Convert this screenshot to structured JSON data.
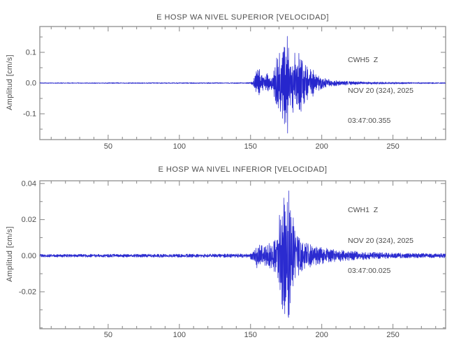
{
  "page": {
    "background": "#ffffff"
  },
  "chart_data": [
    {
      "type": "line",
      "subtype": "seismogram-velocity-trace",
      "title": "E HOSP WA NIVEL SUPERIOR [VELOCIDAD]",
      "ylabel": "Amplitud [cm/s]",
      "xlabel": "",
      "station": {
        "code": "CWH5",
        "component": "Z",
        "date": "NOV 20 (324), 2025",
        "time": "03:47:00.355"
      },
      "station_lines": [
        "CWH5  Z",
        "NOV 20 (324), 2025",
        "03:47:00.355"
      ],
      "xlim": [
        2,
        287
      ],
      "ylim": [
        -0.184,
        0.184
      ],
      "xticks": [
        50,
        100,
        150,
        200,
        250
      ],
      "xtick_labels": [
        "50",
        "100",
        "150",
        "200",
        "250"
      ],
      "xtick_minor_step": 10,
      "yticks": [
        -0.1,
        0.0,
        0.1
      ],
      "ytick_labels": [
        "-0.1",
        "0.0",
        "0.1"
      ],
      "ytick_minor_step": 0.05,
      "grid": false,
      "line_color": "#2626cd",
      "axis_color": "#8f8f8f",
      "text_color": "#4d4d4d",
      "noise_floor": 0.0015,
      "peak_amplitude": 0.172,
      "peak_x": 174,
      "event_onset_x": 152,
      "seed": 11,
      "envelope": [
        [
          2,
          0.0013
        ],
        [
          60,
          0.0015
        ],
        [
          120,
          0.0016
        ],
        [
          146,
          0.0018
        ],
        [
          150,
          0.0022
        ],
        [
          152,
          0.01
        ],
        [
          154,
          0.038
        ],
        [
          156,
          0.048
        ],
        [
          158,
          0.03
        ],
        [
          160,
          0.02
        ],
        [
          162,
          0.034
        ],
        [
          164,
          0.024
        ],
        [
          166,
          0.035
        ],
        [
          167,
          0.055
        ],
        [
          168,
          0.075
        ],
        [
          169,
          0.095
        ],
        [
          170,
          0.115
        ],
        [
          171,
          0.095
        ],
        [
          172,
          0.105
        ],
        [
          173,
          0.135
        ],
        [
          174,
          0.172
        ],
        [
          175,
          0.125
        ],
        [
          176,
          0.165
        ],
        [
          177,
          0.105
        ],
        [
          178,
          0.09
        ],
        [
          179,
          0.125
        ],
        [
          180,
          0.1
        ],
        [
          181,
          0.115
        ],
        [
          182,
          0.082
        ],
        [
          183,
          0.068
        ],
        [
          184,
          0.1
        ],
        [
          185,
          0.11
        ],
        [
          186,
          0.082
        ],
        [
          187,
          0.06
        ],
        [
          188,
          0.078
        ],
        [
          189,
          0.052
        ],
        [
          190,
          0.062
        ],
        [
          191,
          0.042
        ],
        [
          192,
          0.052
        ],
        [
          193,
          0.036
        ],
        [
          194,
          0.046
        ],
        [
          195,
          0.032
        ],
        [
          197,
          0.026
        ],
        [
          199,
          0.022
        ],
        [
          201,
          0.018
        ],
        [
          204,
          0.014
        ],
        [
          207,
          0.011
        ],
        [
          210,
          0.009
        ],
        [
          214,
          0.0075
        ],
        [
          218,
          0.0062
        ],
        [
          224,
          0.005
        ],
        [
          230,
          0.0042
        ],
        [
          238,
          0.0035
        ],
        [
          248,
          0.003
        ],
        [
          260,
          0.0025
        ],
        [
          272,
          0.0021
        ],
        [
          287,
          0.0018
        ]
      ]
    },
    {
      "type": "line",
      "subtype": "seismogram-velocity-trace",
      "title": "E HOSP WA NIVEL INFERIOR [VELOCIDAD]",
      "ylabel": "Amplitud [cm/s]",
      "xlabel": "",
      "station": {
        "code": "CWH1",
        "component": "Z",
        "date": "NOV 20 (324), 2025",
        "time": "03:47:00.025"
      },
      "station_lines": [
        "CWH1  Z",
        "NOV 20 (324), 2025",
        "03:47:00.025"
      ],
      "xlim": [
        2,
        287
      ],
      "ylim": [
        -0.0405,
        0.0415
      ],
      "xticks": [
        50,
        100,
        150,
        200,
        250
      ],
      "xtick_labels": [
        "50",
        "100",
        "150",
        "200",
        "250"
      ],
      "xtick_minor_step": 10,
      "yticks": [
        -0.02,
        0.0,
        0.02,
        0.04
      ],
      "ytick_labels": [
        "-0.02",
        "0.00",
        "0.02",
        "0.04"
      ],
      "ytick_minor_step": 0.01,
      "grid": false,
      "line_color": "#2b2bd0",
      "axis_color": "#8f8f8f",
      "text_color": "#4d4d4d",
      "noise_floor": 0.0008,
      "peak_amplitude": 0.0405,
      "peak_x": 172,
      "event_onset_x": 151,
      "seed": 23,
      "envelope": [
        [
          2,
          0.0008
        ],
        [
          80,
          0.0009
        ],
        [
          140,
          0.001
        ],
        [
          149,
          0.0011
        ],
        [
          151,
          0.003
        ],
        [
          153,
          0.0058
        ],
        [
          155,
          0.0072
        ],
        [
          157,
          0.006
        ],
        [
          159,
          0.0066
        ],
        [
          161,
          0.0055
        ],
        [
          163,
          0.0068
        ],
        [
          165,
          0.0075
        ],
        [
          167,
          0.0095
        ],
        [
          169,
          0.016
        ],
        [
          170,
          0.022
        ],
        [
          171,
          0.03
        ],
        [
          172,
          0.0405
        ],
        [
          173,
          0.033
        ],
        [
          174,
          0.036
        ],
        [
          175,
          0.027
        ],
        [
          176,
          0.031
        ],
        [
          177,
          0.0365
        ],
        [
          178,
          0.025
        ],
        [
          179,
          0.019
        ],
        [
          180,
          0.023
        ],
        [
          181,
          0.016
        ],
        [
          182,
          0.013
        ],
        [
          184,
          0.0105
        ],
        [
          186,
          0.0085
        ],
        [
          188,
          0.0078
        ],
        [
          190,
          0.007
        ],
        [
          193,
          0.006
        ],
        [
          196,
          0.0052
        ],
        [
          200,
          0.0046
        ],
        [
          205,
          0.004
        ],
        [
          210,
          0.0035
        ],
        [
          216,
          0.003
        ],
        [
          222,
          0.0026
        ],
        [
          230,
          0.0022
        ],
        [
          240,
          0.0018
        ],
        [
          252,
          0.0015
        ],
        [
          265,
          0.0013
        ],
        [
          287,
          0.0012
        ]
      ]
    }
  ]
}
